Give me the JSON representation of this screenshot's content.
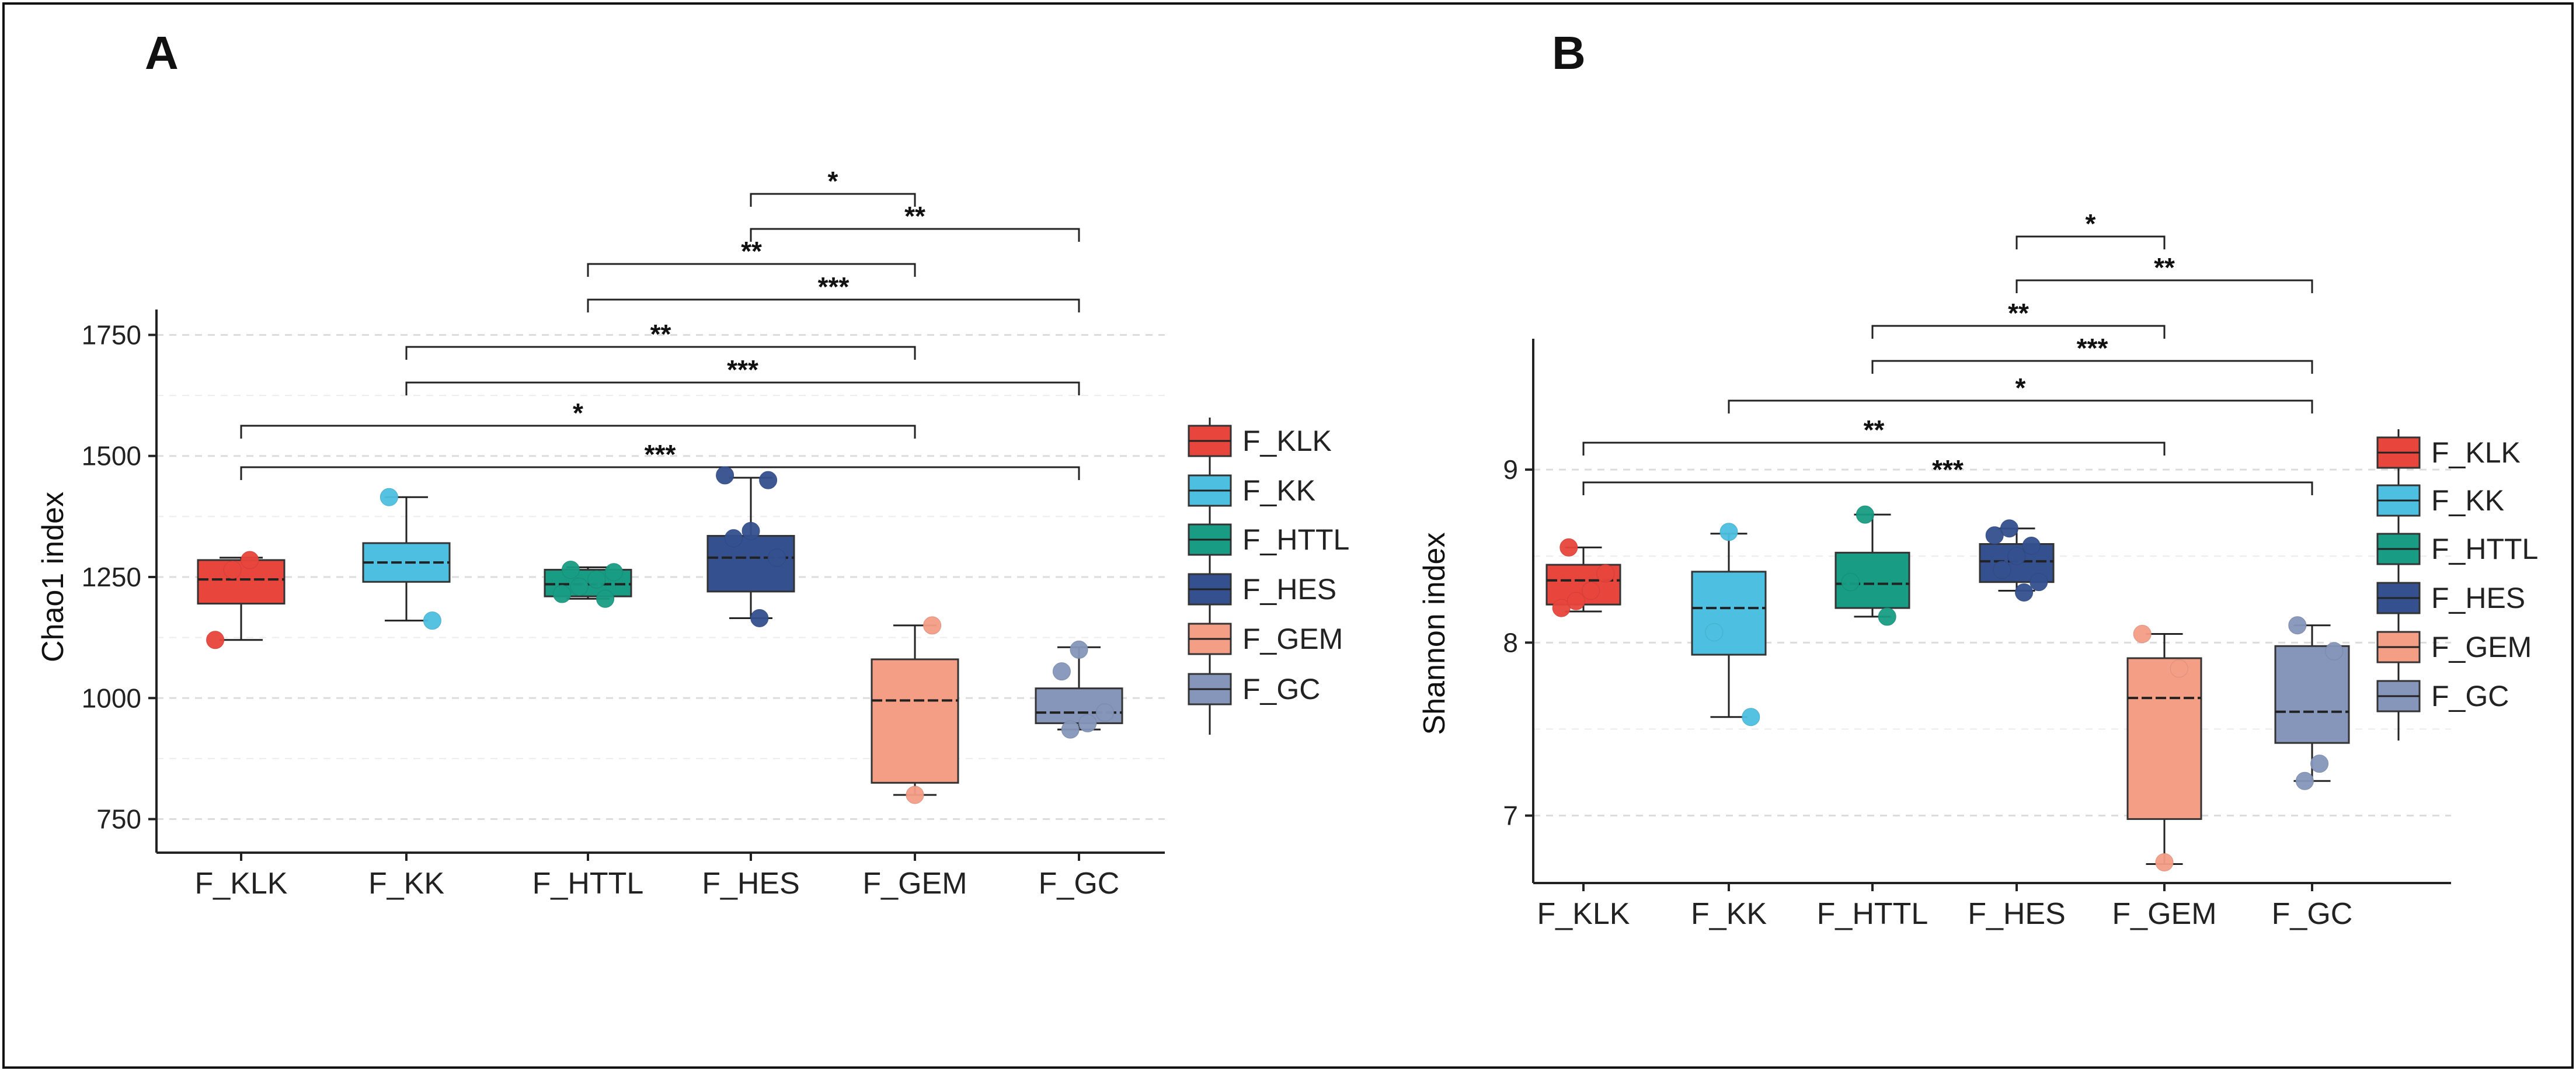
{
  "figure": {
    "colors": {
      "F_KLK": "#e8453c",
      "F_KK": "#4dbfe0",
      "F_HTTL": "#189c83",
      "F_HES": "#34508f",
      "F_GEM": "#f49e86",
      "F_GC": "#8596ba"
    }
  },
  "chart_data": [
    {
      "type": "box",
      "panel_label": "A",
      "title": "",
      "xlabel": "",
      "ylabel": "Chao1 index",
      "ylim": [
        700,
        1800
      ],
      "yticks": [
        750,
        1000,
        1250,
        1500,
        1750
      ],
      "grid": true,
      "categories": [
        "F_KLK",
        "F_KK",
        "F_HTTL",
        "F_HES",
        "F_GEM",
        "F_GC"
      ],
      "boxes": [
        {
          "name": "F_KLK",
          "min": 1120,
          "q1": 1195,
          "median": 1245,
          "q3": 1285,
          "max": 1290,
          "points": [
            1120,
            1265,
            1285
          ]
        },
        {
          "name": "F_KK",
          "min": 1160,
          "q1": 1240,
          "median": 1280,
          "q3": 1320,
          "max": 1415,
          "points": [
            1160,
            1415
          ]
        },
        {
          "name": "F_HTTL",
          "min": 1205,
          "q1": 1210,
          "median": 1235,
          "q3": 1265,
          "max": 1270,
          "points": [
            1205,
            1215,
            1230,
            1245,
            1260,
            1265
          ]
        },
        {
          "name": "F_HES",
          "min": 1165,
          "q1": 1220,
          "median": 1290,
          "q3": 1335,
          "max": 1455,
          "points": [
            1165,
            1290,
            1330,
            1345,
            1450,
            1460
          ]
        },
        {
          "name": "F_GEM",
          "min": 800,
          "q1": 825,
          "median": 995,
          "q3": 1080,
          "max": 1150,
          "points": [
            800,
            1150
          ]
        },
        {
          "name": "F_GC",
          "min": 935,
          "q1": 948,
          "median": 970,
          "q3": 1020,
          "max": 1105,
          "points": [
            935,
            948,
            970,
            1055,
            1100
          ]
        }
      ],
      "significance": [
        {
          "from": "F_HES",
          "to": "F_GEM",
          "label": "*"
        },
        {
          "from": "F_HES",
          "to": "F_GC",
          "label": "**"
        },
        {
          "from": "F_HTTL",
          "to": "F_GEM",
          "label": "**"
        },
        {
          "from": "F_HTTL",
          "to": "F_GC",
          "label": "***"
        },
        {
          "from": "F_KK",
          "to": "F_GEM",
          "label": "**"
        },
        {
          "from": "F_KK",
          "to": "F_GC",
          "label": "***"
        },
        {
          "from": "F_KLK",
          "to": "F_GEM",
          "label": "*"
        },
        {
          "from": "F_KLK",
          "to": "F_GC",
          "label": "***"
        }
      ],
      "legend": [
        "F_KLK",
        "F_KK",
        "F_HTTL",
        "F_HES",
        "F_GEM",
        "F_GC"
      ],
      "legend_position": "right"
    },
    {
      "type": "box",
      "panel_label": "B",
      "title": "",
      "xlabel": "",
      "ylabel": "Shannon index",
      "ylim": [
        6.6,
        9.75
      ],
      "yticks": [
        7,
        8,
        9
      ],
      "grid": true,
      "categories": [
        "F_KLK",
        "F_KK",
        "F_HTTL",
        "F_HES",
        "F_GEM",
        "F_GC"
      ],
      "boxes": [
        {
          "name": "F_KLK",
          "min": 8.18,
          "q1": 8.22,
          "median": 8.36,
          "q3": 8.45,
          "max": 8.55,
          "points": [
            8.2,
            8.24,
            8.3,
            8.4,
            8.55
          ]
        },
        {
          "name": "F_KK",
          "min": 7.57,
          "q1": 7.93,
          "median": 8.2,
          "q3": 8.41,
          "max": 8.63,
          "points": [
            7.57,
            8.06,
            8.64
          ]
        },
        {
          "name": "F_HTTL",
          "min": 8.15,
          "q1": 8.2,
          "median": 8.34,
          "q3": 8.52,
          "max": 8.74,
          "points": [
            8.15,
            8.35,
            8.74
          ]
        },
        {
          "name": "F_HES",
          "min": 8.3,
          "q1": 8.35,
          "median": 8.47,
          "q3": 8.57,
          "max": 8.66,
          "points": [
            8.29,
            8.35,
            8.42,
            8.5,
            8.56,
            8.62,
            8.66
          ]
        },
        {
          "name": "F_GEM",
          "min": 6.72,
          "q1": 6.98,
          "median": 7.68,
          "q3": 7.91,
          "max": 8.05,
          "points": [
            6.73,
            7.85,
            8.05
          ]
        },
        {
          "name": "F_GC",
          "min": 7.2,
          "q1": 7.42,
          "median": 7.6,
          "q3": 7.98,
          "max": 8.1,
          "points": [
            7.2,
            7.3,
            7.95,
            8.1
          ]
        }
      ],
      "significance": [
        {
          "from": "F_HES",
          "to": "F_GEM",
          "label": "*"
        },
        {
          "from": "F_HES",
          "to": "F_GC",
          "label": "**"
        },
        {
          "from": "F_HTTL",
          "to": "F_GEM",
          "label": "**"
        },
        {
          "from": "F_HTTL",
          "to": "F_GC",
          "label": "***"
        },
        {
          "from": "F_KK",
          "to": "F_GC",
          "label": "*"
        },
        {
          "from": "F_KLK",
          "to": "F_GEM",
          "label": "**"
        },
        {
          "from": "F_KLK",
          "to": "F_GC",
          "label": "***"
        }
      ],
      "legend": [
        "F_KLK",
        "F_KK",
        "F_HTTL",
        "F_HES",
        "F_GEM",
        "F_GC"
      ],
      "legend_position": "right"
    }
  ]
}
